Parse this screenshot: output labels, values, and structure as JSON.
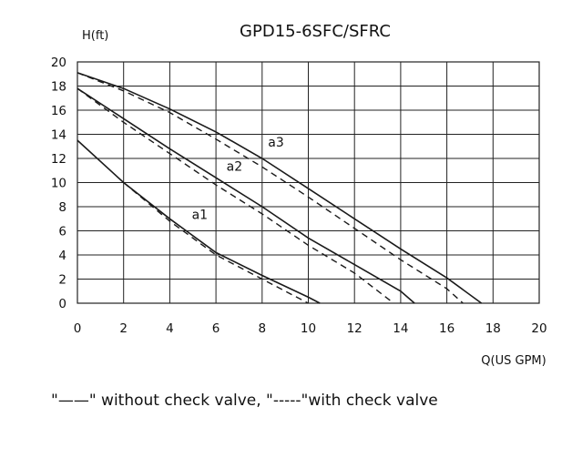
{
  "chart_data": {
    "type": "line",
    "title": "GPD15-6SFC/SFRC",
    "ylabel": "H(ft)",
    "xlabel": "Q(US GPM)",
    "xlim": [
      0,
      20
    ],
    "ylim": [
      0,
      20
    ],
    "x_ticks": [
      0,
      2,
      4,
      6,
      8,
      10,
      12,
      14,
      16,
      18,
      20
    ],
    "y_ticks": [
      0,
      2,
      4,
      6,
      8,
      10,
      12,
      14,
      16,
      18,
      20
    ],
    "grid": true,
    "curve_labels": [
      {
        "text": "a1",
        "x": 5.3,
        "y": 7.0
      },
      {
        "text": "a2",
        "x": 6.8,
        "y": 11.0
      },
      {
        "text": "a3",
        "x": 8.6,
        "y": 13.0
      }
    ],
    "series": [
      {
        "id": "a1-solid",
        "style": "solid",
        "points": [
          [
            0,
            13.5
          ],
          [
            2,
            10.0
          ],
          [
            4,
            7.0
          ],
          [
            6,
            4.2
          ],
          [
            8,
            2.3
          ],
          [
            10,
            0.5
          ],
          [
            10.5,
            0
          ]
        ]
      },
      {
        "id": "a1-dashed",
        "style": "dashed",
        "points": [
          [
            2,
            10.0
          ],
          [
            4,
            6.8
          ],
          [
            6,
            4.0
          ],
          [
            8,
            2.0
          ],
          [
            10,
            0
          ]
        ]
      },
      {
        "id": "a2-solid",
        "style": "solid",
        "points": [
          [
            0,
            17.8
          ],
          [
            2,
            15.3
          ],
          [
            4,
            12.8
          ],
          [
            6,
            10.4
          ],
          [
            8,
            8.0
          ],
          [
            10,
            5.4
          ],
          [
            12,
            3.2
          ],
          [
            14,
            1.0
          ],
          [
            14.6,
            0
          ]
        ]
      },
      {
        "id": "a2-dashed",
        "style": "dashed",
        "points": [
          [
            0,
            17.8
          ],
          [
            2,
            15.0
          ],
          [
            4,
            12.4
          ],
          [
            6,
            9.8
          ],
          [
            8,
            7.4
          ],
          [
            10,
            4.8
          ],
          [
            12,
            2.5
          ],
          [
            13.7,
            0
          ]
        ]
      },
      {
        "id": "a3-solid",
        "style": "solid",
        "points": [
          [
            0,
            19.1
          ],
          [
            2,
            17.8
          ],
          [
            4,
            16.1
          ],
          [
            6,
            14.2
          ],
          [
            8,
            12.0
          ],
          [
            10,
            9.5
          ],
          [
            12,
            7.0
          ],
          [
            14,
            4.5
          ],
          [
            16,
            2.1
          ],
          [
            17.5,
            0
          ]
        ]
      },
      {
        "id": "a3-dashed",
        "style": "dashed",
        "points": [
          [
            0,
            19.1
          ],
          [
            2,
            17.6
          ],
          [
            4,
            15.8
          ],
          [
            6,
            13.6
          ],
          [
            8,
            11.3
          ],
          [
            10,
            8.8
          ],
          [
            12,
            6.2
          ],
          [
            14,
            3.6
          ],
          [
            16,
            1.2
          ],
          [
            16.7,
            0
          ]
        ]
      }
    ],
    "legend_text": "\"——\"  without check valve, \"-----\"with check valve"
  }
}
